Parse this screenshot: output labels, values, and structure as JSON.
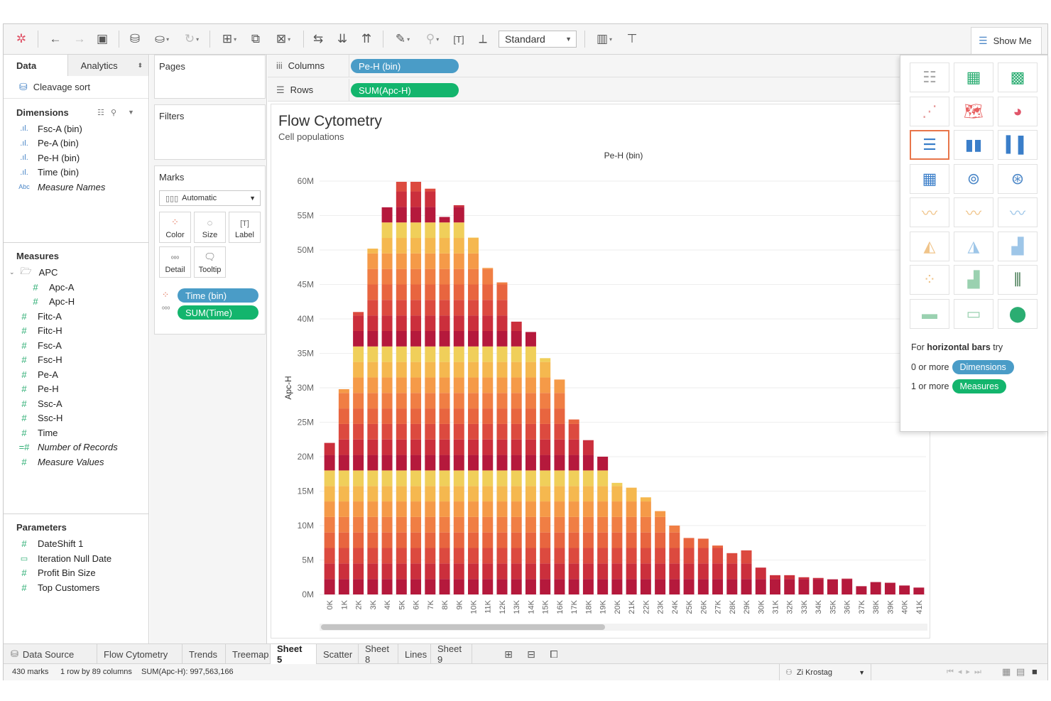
{
  "toolbar": {
    "fit_value": "Standard",
    "show_me_label": "Show Me"
  },
  "data_pane": {
    "tab_data": "Data",
    "tab_analytics": "Analytics",
    "datasource": "Cleavage sort",
    "dimensions_header": "Dimensions",
    "dimensions": [
      {
        "label": "Fsc-A (bin)",
        "icon": "bar-chart-icon"
      },
      {
        "label": "Pe-A (bin)",
        "icon": "bar-chart-icon"
      },
      {
        "label": "Pe-H (bin)",
        "icon": "bar-chart-icon"
      },
      {
        "label": "Time (bin)",
        "icon": "bar-chart-icon"
      },
      {
        "label": "Measure Names",
        "icon": "abc-icon"
      }
    ],
    "measures_header": "Measures",
    "measure_folder": "APC",
    "measures": [
      "Apc-A",
      "Apc-H",
      "Fitc-A",
      "Fitc-H",
      "Fsc-A",
      "Fsc-H",
      "Pe-A",
      "Pe-H",
      "Ssc-A",
      "Ssc-H",
      "Time",
      "Number of Records",
      "Measure Values"
    ],
    "parameters_header": "Parameters",
    "parameters": [
      "DateShift 1",
      "Iteration Null Date",
      "Profit Bin Size",
      "Top Customers"
    ]
  },
  "cards": {
    "pages": "Pages",
    "filters": "Filters",
    "marks": "Marks",
    "mark_type": "Automatic",
    "mark_buttons": [
      "Color",
      "Size",
      "Label",
      "Detail",
      "Tooltip"
    ],
    "mark_pills": [
      "Time (bin)",
      "SUM(Time)"
    ]
  },
  "shelves": {
    "columns_label": "Columns",
    "columns_pill": "Pe-H (bin)",
    "rows_label": "Rows",
    "rows_pill": "SUM(Apc-H)"
  },
  "viz": {
    "title": "Flow Cytometry",
    "subtitle": "Cell populations"
  },
  "chart_data": {
    "type": "bar",
    "stacked": true,
    "title": "Flow Cytometry",
    "subtitle": "Cell populations",
    "xlabel": "Pe-H (bin)",
    "ylabel": "Apc-H",
    "ylim": [
      0,
      60000000
    ],
    "yticks": [
      "0M",
      "5M",
      "10M",
      "15M",
      "20M",
      "25M",
      "30M",
      "35M",
      "40M",
      "45M",
      "50M",
      "55M",
      "60M"
    ],
    "categories": [
      "0K",
      "1K",
      "2K",
      "3K",
      "4K",
      "5K",
      "6K",
      "7K",
      "8K",
      "9K",
      "10K",
      "11K",
      "12K",
      "13K",
      "14K",
      "15K",
      "16K",
      "17K",
      "18K",
      "19K",
      "20K",
      "21K",
      "22K",
      "23K",
      "24K",
      "25K",
      "26K",
      "27K",
      "28K",
      "29K",
      "30K",
      "31K",
      "32K",
      "33K",
      "34K",
      "35K",
      "36K",
      "37K",
      "38K",
      "39K",
      "40K",
      "41K"
    ],
    "totals": [
      22000000,
      29800000,
      41000000,
      50200000,
      56200000,
      59900000,
      59900000,
      58900000,
      54800000,
      56500000,
      51800000,
      47400000,
      45300000,
      39600000,
      38100000,
      34300000,
      31200000,
      25400000,
      22400000,
      20000000,
      16200000,
      15500000,
      14100000,
      12100000,
      10000000,
      8200000,
      8100000,
      7100000,
      6000000,
      6400000,
      3900000,
      2800000,
      2800000,
      2500000,
      2400000,
      2200000,
      2300000,
      1200000,
      1800000,
      1700000,
      1300000,
      1000000
    ],
    "color_scale": [
      "#b5193c",
      "#cb2f3c",
      "#dc4a3f",
      "#e8653f",
      "#f07e44",
      "#f59a48",
      "#f5b84f",
      "#f0cf5a"
    ],
    "grid": true
  },
  "show_me": {
    "hint_prefix": "For ",
    "hint_bold": "horizontal bars",
    "hint_suffix": " try",
    "row1_prefix": "0 or more",
    "row1_pill": "Dimensions",
    "row2_prefix": "1 or more",
    "row2_pill": "Measures",
    "selected_chart": "horizontal-bars"
  },
  "sheet_tabs": {
    "data_source": "Data Source",
    "tabs": [
      "Flow Cytometry",
      "Trends",
      "Treemap",
      "Sheet 5",
      "Scatter",
      "Sheet 8",
      "Lines",
      "Sheet 9"
    ],
    "active": "Sheet 5"
  },
  "status": {
    "marks": "430 marks",
    "dims": "1 row by 89 columns",
    "sum": "SUM(Apc-H): 997,563,166",
    "user": "Zi Krostag"
  }
}
